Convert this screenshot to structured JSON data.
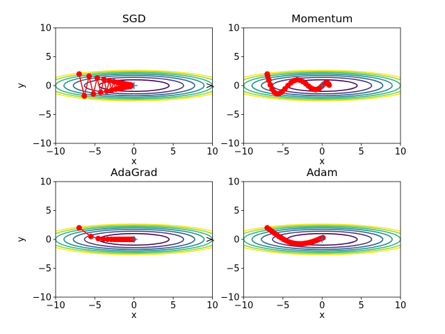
{
  "chart_data": {
    "type": "line",
    "layout": "2x2 grid",
    "function_contours": {
      "levels": [
        1,
        2,
        3,
        4,
        5,
        6,
        7
      ],
      "colormap": "viridis",
      "level_colors": [
        "#440154",
        "#443983",
        "#31688e",
        "#21918c",
        "#35b779",
        "#90d743",
        "#fde725"
      ]
    },
    "minimum_marker": {
      "x": 0,
      "y": 0,
      "symbol": "+",
      "color": "#1f77b4"
    },
    "path_color": "#ff0000",
    "marker": "o",
    "subplots": [
      {
        "title": "SGD",
        "xlabel": "x",
        "ylabel": "y",
        "xlim": [
          -10,
          10
        ],
        "ylim": [
          -10,
          10
        ],
        "xticks": [
          "−10",
          "−5",
          "0",
          "5",
          "10"
        ],
        "yticks": [
          "−10",
          "−5",
          "0",
          "5",
          "10"
        ],
        "x": [
          -7,
          -6.34,
          -5.73,
          -5.19,
          -4.7,
          -4.25,
          -3.84,
          -3.48,
          -3.15,
          -2.85,
          -2.58,
          -2.33,
          -2.11,
          -1.91,
          -1.73,
          -1.57,
          -1.41,
          -1.28,
          -1.16,
          -1.05,
          -0.95,
          -0.86,
          -0.78,
          -0.71,
          -0.64,
          -0.58,
          -0.52,
          -0.48,
          -0.43,
          -0.39,
          -0.35
        ],
        "y": [
          2,
          -1.8,
          1.62,
          -1.46,
          1.31,
          -1.18,
          1.06,
          -0.96,
          0.86,
          -0.77,
          0.7,
          -0.63,
          0.56,
          -0.51,
          0.46,
          -0.41,
          0.37,
          -0.33,
          0.3,
          -0.27,
          0.24,
          -0.22,
          0.2,
          -0.18,
          0.16,
          -0.14,
          0.13,
          -0.12,
          0.1,
          -0.09,
          0.08
        ]
      },
      {
        "title": "Momentum",
        "xlabel": "x",
        "ylabel": "y",
        "xlim": [
          -10,
          10
        ],
        "ylim": [
          -10,
          10
        ],
        "xticks": [
          "−10",
          "−5",
          "0",
          "5",
          "10"
        ],
        "yticks": [
          "−10",
          "−5",
          "0",
          "5",
          "10"
        ],
        "x": [
          -7,
          -6.93,
          -6.8,
          -6.61,
          -6.38,
          -6.1,
          -5.79,
          -5.46,
          -5.1,
          -4.73,
          -4.35,
          -3.96,
          -3.57,
          -3.19,
          -2.81,
          -2.44,
          -2.08,
          -1.74,
          -1.42,
          -1.11,
          -0.82,
          -0.56,
          -0.31,
          -0.09,
          0.11,
          0.3,
          0.46,
          0.6,
          0.71,
          0.82,
          0.9
        ],
        "y": [
          2,
          1.6,
          0.92,
          0.12,
          -0.62,
          -1.16,
          -1.42,
          -1.37,
          -1.05,
          -0.55,
          0.01,
          0.51,
          0.86,
          1.0,
          0.93,
          0.68,
          0.32,
          -0.07,
          -0.41,
          -0.63,
          -0.7,
          -0.63,
          -0.43,
          -0.17,
          0.1,
          0.32,
          0.45,
          0.49,
          0.42,
          0.27,
          0.09
        ]
      },
      {
        "title": "AdaGrad",
        "xlabel": "x",
        "ylabel": "y",
        "xlim": [
          -10,
          10
        ],
        "ylim": [
          -10,
          10
        ],
        "xticks": [
          "−10",
          "−5",
          "0",
          "5",
          "10"
        ],
        "yticks": [
          "−10",
          "−5",
          "0",
          "5",
          "10"
        ],
        "x": [
          -7,
          -5.5,
          -4.57,
          -3.89,
          -3.35,
          -2.9,
          -2.52,
          -2.21,
          -1.93,
          -1.7,
          -1.49,
          -1.31,
          -1.15,
          -1.02,
          -0.9,
          -0.79,
          -0.7,
          -0.61,
          -0.54,
          -0.48,
          -0.42,
          -0.37,
          -0.33,
          -0.29,
          -0.26,
          -0.23,
          -0.2,
          -0.18,
          -0.15,
          -0.14,
          -0.12
        ],
        "y": [
          2,
          0.5,
          0.14,
          0.04,
          0.01,
          0.003,
          0.001,
          0,
          0,
          0,
          0,
          0,
          0,
          0,
          0,
          0,
          0,
          0,
          0,
          0,
          0,
          0,
          0,
          0,
          0,
          0,
          0,
          0,
          0,
          0,
          0
        ]
      },
      {
        "title": "Adam",
        "xlabel": "x",
        "ylabel": "y",
        "xlim": [
          -10,
          10
        ],
        "ylim": [
          -10,
          10
        ],
        "xticks": [
          "−10",
          "−5",
          "0",
          "5",
          "10"
        ],
        "yticks": [
          "−10",
          "−5",
          "0",
          "5",
          "10"
        ],
        "x": [
          -7,
          -6.7,
          -6.4,
          -6.1,
          -5.8,
          -5.5,
          -5.2,
          -4.9,
          -4.6,
          -4.3,
          -4.0,
          -3.7,
          -3.4,
          -3.1,
          -2.8,
          -2.5,
          -2.2,
          -1.9,
          -1.6,
          -1.35,
          -1.1,
          -0.9,
          -0.7,
          -0.5,
          -0.35,
          -0.2,
          -0.1,
          0,
          0.05,
          0.1,
          0.1
        ],
        "y": [
          2,
          1.7,
          1.4,
          1.1,
          0.8,
          0.5,
          0.25,
          0.0,
          -0.2,
          -0.4,
          -0.55,
          -0.65,
          -0.72,
          -0.76,
          -0.77,
          -0.75,
          -0.7,
          -0.63,
          -0.55,
          -0.45,
          -0.35,
          -0.25,
          -0.15,
          -0.05,
          0.05,
          0.12,
          0.18,
          0.22,
          0.25,
          0.27,
          0.28
        ]
      }
    ]
  }
}
